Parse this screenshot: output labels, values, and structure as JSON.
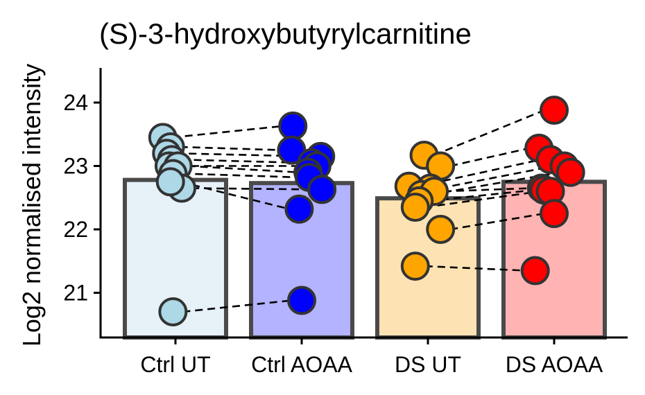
{
  "chart_data": {
    "type": "bar",
    "title": "(S)-3-hydroxybutyrylcarnitine",
    "xlabel": "",
    "ylabel": "Log2 normalised intensity",
    "ylim": [
      20.3,
      24.55
    ],
    "yticks": [
      21,
      22,
      23,
      24
    ],
    "grid": false,
    "legend": "none",
    "categories": [
      "Ctrl UT",
      "Ctrl AOAA",
      "DS UT",
      "DS AOAA"
    ],
    "values": [
      22.78,
      22.73,
      22.49,
      22.75
    ],
    "bar_fill": [
      "#e6f1f8",
      "#b3b3ff",
      "#fde3b3",
      "#ffb3b3"
    ],
    "point_color": [
      "#add8e6",
      "#0000ff",
      "#ffa500",
      "#ff0000"
    ],
    "points": [
      [
        {
          "x": 0.9,
          "y": 23.45
        },
        {
          "x": 0.96,
          "y": 23.3
        },
        {
          "x": 0.93,
          "y": 23.2
        },
        {
          "x": 0.97,
          "y": 23.1
        },
        {
          "x": 0.95,
          "y": 23.0
        },
        {
          "x": 1.02,
          "y": 23.0
        },
        {
          "x": 0.98,
          "y": 22.88
        },
        {
          "x": 1.05,
          "y": 22.65
        },
        {
          "x": 0.96,
          "y": 22.75
        },
        {
          "x": 0.98,
          "y": 20.7
        }
      ],
      [
        {
          "x": 1.93,
          "y": 23.63
        },
        {
          "x": 1.92,
          "y": 23.25
        },
        {
          "x": 2.15,
          "y": 23.15
        },
        {
          "x": 2.08,
          "y": 23.05
        },
        {
          "x": 2.12,
          "y": 23.0
        },
        {
          "x": 2.05,
          "y": 22.9
        },
        {
          "x": 2.06,
          "y": 22.82
        },
        {
          "x": 2.16,
          "y": 22.63
        },
        {
          "x": 1.98,
          "y": 22.32
        },
        {
          "x": 2.0,
          "y": 20.88
        }
      ],
      [
        {
          "x": 2.97,
          "y": 23.17
        },
        {
          "x": 3.1,
          "y": 23.0
        },
        {
          "x": 2.85,
          "y": 22.68
        },
        {
          "x": 3.02,
          "y": 22.65
        },
        {
          "x": 2.95,
          "y": 22.55
        },
        {
          "x": 3.05,
          "y": 22.6
        },
        {
          "x": 2.93,
          "y": 22.45
        },
        {
          "x": 2.9,
          "y": 22.35
        },
        {
          "x": 3.1,
          "y": 22.0
        },
        {
          "x": 2.9,
          "y": 21.42
        }
      ],
      [
        {
          "x": 4.0,
          "y": 23.88
        },
        {
          "x": 3.88,
          "y": 23.28
        },
        {
          "x": 3.97,
          "y": 23.1
        },
        {
          "x": 4.08,
          "y": 23.0
        },
        {
          "x": 4.13,
          "y": 22.9
        },
        {
          "x": 3.9,
          "y": 22.65
        },
        {
          "x": 3.92,
          "y": 22.62
        },
        {
          "x": 3.97,
          "y": 22.6
        },
        {
          "x": 4.0,
          "y": 22.25
        },
        {
          "x": 3.85,
          "y": 21.35
        }
      ]
    ],
    "paired_comparisons": [
      [
        0,
        1
      ],
      [
        2,
        3
      ]
    ]
  }
}
